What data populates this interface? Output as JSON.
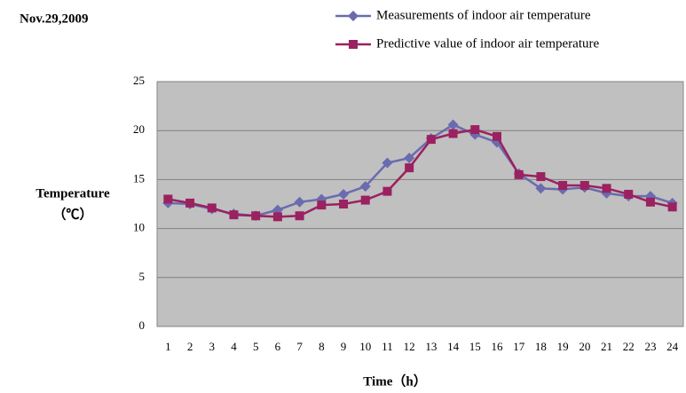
{
  "chart_data": {
    "type": "line",
    "title": "Nov.29,2009",
    "x_label": "Time（h）",
    "y_label": [
      "Temperature",
      "（℃）"
    ],
    "categories": [
      "1",
      "2",
      "3",
      "4",
      "5",
      "6",
      "7",
      "8",
      "9",
      "10",
      "11",
      "12",
      "13",
      "14",
      "15",
      "16",
      "17",
      "18",
      "19",
      "20",
      "21",
      "22",
      "23",
      "24"
    ],
    "series": [
      {
        "name": "Measurements of indoor air temperature",
        "color": "#6b6bb0",
        "marker": "diamond",
        "values": [
          12.6,
          12.5,
          12.0,
          11.5,
          11.3,
          11.9,
          12.7,
          13.0,
          13.5,
          14.3,
          16.7,
          17.2,
          19.2,
          20.6,
          19.6,
          18.8,
          15.6,
          14.1,
          14.0,
          14.2,
          13.6,
          13.3,
          13.3,
          12.6
        ]
      },
      {
        "name": "Predictive value of indoor air temperature",
        "color": "#9b2160",
        "marker": "square",
        "values": [
          13.0,
          12.6,
          12.1,
          11.4,
          11.3,
          11.2,
          11.3,
          12.4,
          12.5,
          12.9,
          13.8,
          16.2,
          19.1,
          19.7,
          20.1,
          19.4,
          15.5,
          15.3,
          14.4,
          14.4,
          14.1,
          13.5,
          12.7,
          12.2
        ]
      }
    ],
    "ylim": [
      0,
      25
    ],
    "yticks": [
      0,
      5,
      10,
      15,
      20,
      25
    ],
    "grid": true,
    "legend": "top-right"
  }
}
